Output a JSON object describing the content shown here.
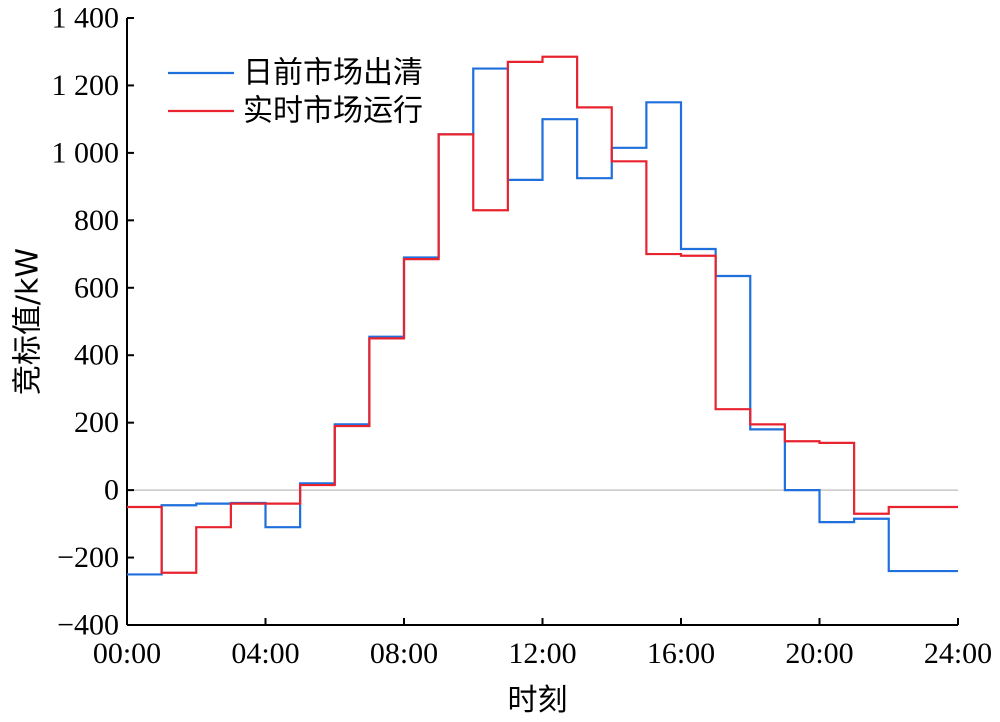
{
  "chart_data": {
    "type": "line",
    "step": true,
    "xlabel": "时刻",
    "ylabel": "竞标值/kW",
    "xlim": [
      0,
      24
    ],
    "ylim": [
      -400,
      1400
    ],
    "x_ticks": [
      0,
      4,
      8,
      12,
      16,
      20,
      24
    ],
    "x_tick_labels": [
      "00:00",
      "04:00",
      "08:00",
      "12:00",
      "16:00",
      "20:00",
      "24:00"
    ],
    "y_ticks": [
      -400,
      -200,
      0,
      200,
      400,
      600,
      800,
      1000,
      1200,
      1400
    ],
    "y_tick_labels": [
      "−400",
      "−200",
      "0",
      "200",
      "400",
      "600",
      "800",
      "1 000",
      "1 200",
      "1 400"
    ],
    "zero_line": true,
    "grid": false,
    "legend_position": "top-left",
    "hours": [
      1,
      2,
      3,
      4,
      5,
      6,
      7,
      8,
      9,
      10,
      11,
      12,
      13,
      14,
      15,
      16,
      17,
      18,
      19,
      20,
      21,
      22,
      23,
      24
    ],
    "series": [
      {
        "name": "日前市场出清",
        "color": "#1f6fdc",
        "values": [
          -250,
          -45,
          -40,
          -38,
          -110,
          20,
          195,
          455,
          690,
          1055,
          1250,
          920,
          1100,
          925,
          1015,
          1150,
          715,
          635,
          180,
          0,
          -95,
          -85,
          -240,
          -240
        ]
      },
      {
        "name": "实时市场运行",
        "color": "#e8232e",
        "values": [
          -50,
          -245,
          -110,
          -40,
          -40,
          15,
          190,
          450,
          685,
          1055,
          830,
          1270,
          1285,
          1135,
          975,
          700,
          695,
          240,
          195,
          145,
          140,
          -70,
          -50,
          -50
        ]
      }
    ]
  }
}
